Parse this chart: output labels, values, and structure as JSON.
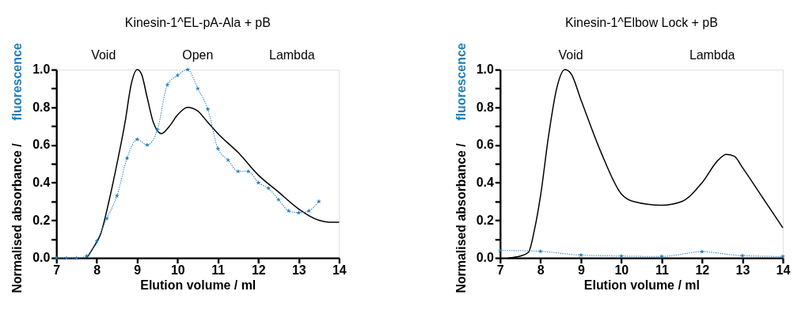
{
  "chart_data": [
    {
      "type": "line",
      "title": "Kinesin-1^EL-pA-Ala + pB",
      "xlabel": "Elution volume / ml",
      "ylabel": "Normalised absorbance / fluorescence",
      "xlim": [
        7,
        14
      ],
      "xticks": [
        7,
        8,
        9,
        10,
        11,
        12,
        13,
        14
      ],
      "ylim": [
        0,
        1.0
      ],
      "yticks": [
        {
          "value": 0,
          "label": "0.0"
        },
        {
          "value": 0.1,
          "label": null
        },
        {
          "value": 0.2,
          "label": "0.2"
        },
        {
          "value": 0.3,
          "label": null
        },
        {
          "value": 0.4,
          "label": "0.4"
        },
        {
          "value": 0.5,
          "label": null
        },
        {
          "value": 0.6,
          "label": "0.6"
        },
        {
          "value": 0.7,
          "label": null
        },
        {
          "value": 0.8,
          "label": "0.8"
        },
        {
          "value": 0.9,
          "label": null
        },
        {
          "value": 1.0,
          "label": "1.0"
        }
      ],
      "grid": false,
      "annotations": [
        "Void",
        "Open",
        "Lambda"
      ],
      "series": [
        {
          "color": "#000000",
          "line_style": "solid",
          "marker": "none",
          "x": [
            7.75,
            7.9,
            8.1,
            8.3,
            8.5,
            8.7,
            8.85,
            9.0,
            9.1,
            9.25,
            9.4,
            9.6,
            9.8,
            10.0,
            10.25,
            10.5,
            10.75,
            11.0,
            11.5,
            12.0,
            12.5,
            13.0,
            13.5,
            13.75,
            14.0
          ],
          "values": [
            0,
            0.05,
            0.13,
            0.3,
            0.5,
            0.72,
            0.92,
            1.0,
            0.98,
            0.85,
            0.72,
            0.66,
            0.7,
            0.76,
            0.8,
            0.78,
            0.72,
            0.66,
            0.56,
            0.44,
            0.35,
            0.26,
            0.2,
            0.19,
            0.19
          ]
        },
        {
          "color": "#1f7fc0",
          "line_style": "dotted",
          "marker": "star",
          "x": [
            7,
            7.25,
            7.5,
            7.75,
            8,
            8.25,
            8.5,
            8.75,
            9,
            9.25,
            9.5,
            9.75,
            10,
            10.25,
            10.5,
            10.75,
            11,
            11.25,
            11.5,
            11.75,
            12,
            12.25,
            12.5,
            12.75,
            13,
            13.25,
            13.5
          ],
          "values": [
            0,
            0,
            0,
            0.01,
            0.09,
            0.21,
            0.33,
            0.53,
            0.63,
            0.6,
            0.68,
            0.92,
            0.97,
            1.0,
            0.9,
            0.79,
            0.58,
            0.52,
            0.46,
            0.46,
            0.4,
            0.37,
            0.31,
            0.25,
            0.24,
            0.25,
            0.3
          ]
        }
      ]
    },
    {
      "type": "line",
      "title": "Kinesin-1^Elbow Lock + pB",
      "xlabel": "Elution volume / ml",
      "ylabel": "Normalised absorbance / fluorescence",
      "xlim": [
        7,
        14
      ],
      "xticks": [
        7,
        8,
        9,
        10,
        11,
        12,
        13,
        14
      ],
      "ylim": [
        0,
        1.0
      ],
      "yticks": [
        {
          "value": 0,
          "label": "0.0"
        },
        {
          "value": 0.1,
          "label": null
        },
        {
          "value": 0.2,
          "label": "0.2"
        },
        {
          "value": 0.3,
          "label": null
        },
        {
          "value": 0.4,
          "label": "0.4"
        },
        {
          "value": 0.5,
          "label": null
        },
        {
          "value": 0.6,
          "label": "0.6"
        },
        {
          "value": 0.7,
          "label": null
        },
        {
          "value": 0.8,
          "label": "0.8"
        },
        {
          "value": 0.9,
          "label": null
        },
        {
          "value": 1.0,
          "label": "1.0"
        }
      ],
      "grid": false,
      "annotations": [
        "Void",
        "Lambda"
      ],
      "series": [
        {
          "color": "#000000",
          "line_style": "solid",
          "marker": "none",
          "x": [
            7.2,
            7.5,
            7.7,
            7.85,
            8.0,
            8.2,
            8.4,
            8.6,
            8.75,
            9.0,
            9.5,
            10.0,
            10.3,
            11.0,
            11.5,
            12.0,
            12.4,
            12.6,
            12.8,
            13.0,
            13.5,
            14.0
          ],
          "values": [
            0,
            0.01,
            0.03,
            0.15,
            0.33,
            0.65,
            0.9,
            1.0,
            0.98,
            0.84,
            0.56,
            0.34,
            0.3,
            0.28,
            0.3,
            0.4,
            0.52,
            0.55,
            0.54,
            0.48,
            0.32,
            0.16
          ]
        },
        {
          "color": "#1f7fc0",
          "line_style": "dotted",
          "marker": "star",
          "x": [
            7,
            8,
            9,
            10,
            11,
            12,
            13,
            14
          ],
          "values": [
            0.04,
            0.035,
            0.015,
            0.01,
            0.008,
            0.033,
            0.012,
            0.008
          ]
        }
      ]
    }
  ]
}
